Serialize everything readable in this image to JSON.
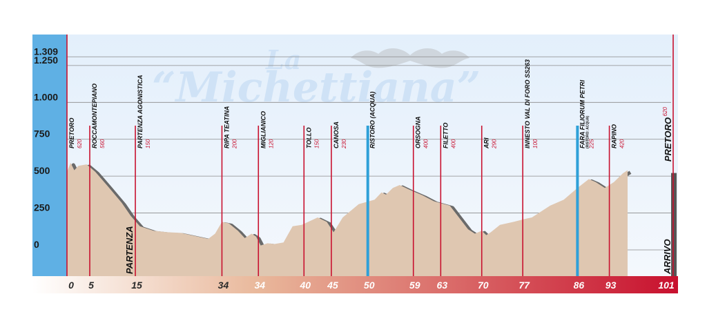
{
  "brand": {
    "logo_top": "La",
    "logo_main": "“Michettiana”"
  },
  "colors": {
    "sky_top": "#e3effb",
    "sky_bottom": "#f4f8fd",
    "axis_panel": "#5fb0e4",
    "profile_fill": "#dfc7b1",
    "profile_shadow": "#6a6a6a",
    "marker_red": "#c8102e",
    "marker_blue": "#2fa0d8",
    "gradient_start": "#ffffff",
    "gradient_end": "#c8102e"
  },
  "chart_data": {
    "type": "area",
    "title": "",
    "xlabel": "",
    "ylabel": "",
    "xlim": [
      0,
      101
    ],
    "ylim": [
      -120,
      1450
    ],
    "ytick_labels": [
      {
        "value": 1309,
        "label": "1.309"
      },
      {
        "value": 1250,
        "label": "1.250"
      },
      {
        "value": 1000,
        "label": "1.000"
      },
      {
        "value": 750,
        "label": "750"
      },
      {
        "value": 500,
        "label": "500"
      },
      {
        "value": 250,
        "label": "250"
      },
      {
        "value": 0,
        "label": "0"
      }
    ],
    "profile": [
      {
        "km": 0,
        "alt": 530
      },
      {
        "km": 0.8,
        "alt": 590
      },
      {
        "km": 1.6,
        "alt": 540
      },
      {
        "km": 2.5,
        "alt": 570
      },
      {
        "km": 4.3,
        "alt": 580
      },
      {
        "km": 6.2,
        "alt": 530
      },
      {
        "km": 9,
        "alt": 430
      },
      {
        "km": 12,
        "alt": 320
      },
      {
        "km": 14,
        "alt": 230
      },
      {
        "km": 16,
        "alt": 160
      },
      {
        "km": 19,
        "alt": 130
      },
      {
        "km": 22,
        "alt": 120
      },
      {
        "km": 25,
        "alt": 115
      },
      {
        "km": 28,
        "alt": 95
      },
      {
        "km": 31,
        "alt": 75
      },
      {
        "km": 32.5,
        "alt": 110
      },
      {
        "km": 34,
        "alt": 190
      },
      {
        "km": 35.5,
        "alt": 180
      },
      {
        "km": 37.5,
        "alt": 130
      },
      {
        "km": 39,
        "alt": 80
      },
      {
        "km": 40.5,
        "alt": 110
      },
      {
        "km": 41.5,
        "alt": 90
      },
      {
        "km": 42.5,
        "alt": 30
      },
      {
        "km": 44,
        "alt": 45
      },
      {
        "km": 45.5,
        "alt": 40
      },
      {
        "km": 47.5,
        "alt": 50
      },
      {
        "km": 49.5,
        "alt": 160
      },
      {
        "km": 51.5,
        "alt": 170
      },
      {
        "km": 55,
        "alt": 220
      },
      {
        "km": 57,
        "alt": 190
      },
      {
        "km": 58.5,
        "alt": 120
      },
      {
        "km": 60.5,
        "alt": 220
      },
      {
        "km": 64,
        "alt": 310
      },
      {
        "km": 67.5,
        "alt": 340
      },
      {
        "km": 69,
        "alt": 390
      },
      {
        "km": 70,
        "alt": 375
      },
      {
        "km": 71.5,
        "alt": 420
      },
      {
        "km": 73,
        "alt": 440
      },
      {
        "km": 75,
        "alt": 410
      },
      {
        "km": 78,
        "alt": 370
      },
      {
        "km": 80.5,
        "alt": 330
      },
      {
        "km": 84,
        "alt": 300
      },
      {
        "km": 86,
        "alt": 220
      },
      {
        "km": 88,
        "alt": 140
      },
      {
        "km": 89.5,
        "alt": 110
      },
      {
        "km": 91,
        "alt": 130
      },
      {
        "km": 92,
        "alt": 100
      },
      {
        "km": 93,
        "alt": 120
      },
      {
        "km": 95,
        "alt": 170
      },
      {
        "km": 98,
        "alt": 190
      },
      {
        "km": 100.5,
        "alt": 210
      },
      {
        "km": 102,
        "alt": 220
      },
      {
        "km": 106,
        "alt": 300
      },
      {
        "km": 109,
        "alt": 340
      },
      {
        "km": 112,
        "alt": 420
      },
      {
        "km": 114.5,
        "alt": 480
      },
      {
        "km": 116,
        "alt": 460
      },
      {
        "km": 118,
        "alt": 420
      },
      {
        "km": 120,
        "alt": 460
      },
      {
        "km": 122,
        "alt": 520
      },
      {
        "km": 123,
        "alt": 540
      }
    ],
    "checkpoints": [
      {
        "pos": 0,
        "km": "0",
        "name": "PRETORO",
        "alt": "620",
        "color": "red"
      },
      {
        "pos": 5,
        "km": "5",
        "name": "ROCCAMONTEPIANO",
        "alt": "560",
        "color": "red"
      },
      {
        "pos": 15,
        "km": "15",
        "name": "PARTENZA AGONISTICA",
        "alt": "150",
        "color": "red"
      },
      {
        "pos": 34,
        "km": "34",
        "name": "RIPA TEATINA",
        "alt": "200",
        "color": "red"
      },
      {
        "pos": 42,
        "km": "34",
        "name": "MIGLIANICO",
        "alt": "120",
        "color": "red"
      },
      {
        "pos": 52,
        "km": "40",
        "name": "TOLLO",
        "alt": "150",
        "color": "red"
      },
      {
        "pos": 58,
        "km": "45",
        "name": "CANOSA",
        "alt": "230",
        "color": "red"
      },
      {
        "pos": 66,
        "km": "50",
        "name": "RISTORO (ACQUA)",
        "alt": "",
        "color": "blue"
      },
      {
        "pos": 76,
        "km": "59",
        "name": "ORSOGNA",
        "alt": "400",
        "color": "red"
      },
      {
        "pos": 82,
        "km": "63",
        "name": "FILETTO",
        "alt": "400",
        "color": "red"
      },
      {
        "pos": 91,
        "km": "70",
        "name": "ARI",
        "alt": "290",
        "color": "red"
      },
      {
        "pos": 100,
        "km": "77",
        "name": "INNESTO VAL DI FORO SS263",
        "alt": "100",
        "color": "red"
      },
      {
        "pos": 112,
        "km": "86",
        "name": "FARA FILIORUM PETRI",
        "sub": "(RISTORO: ACQUA)",
        "alt": "225",
        "color": "blue"
      },
      {
        "pos": 119,
        "km": "93",
        "name": "RAPINO",
        "alt": "420",
        "color": "red"
      },
      {
        "pos": 133,
        "km": "101",
        "name": "PRETORO",
        "alt": "620",
        "color": "red",
        "big": true
      }
    ],
    "annotations": {
      "start": "PARTENZA",
      "finish": "ARRIVO"
    }
  }
}
